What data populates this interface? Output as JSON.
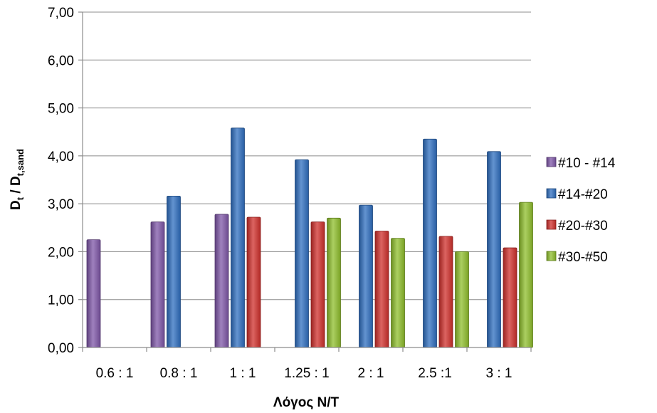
{
  "chart_data": {
    "type": "bar",
    "xlabel": "Λόγος N/T",
    "ylabel": {
      "main": "D",
      "sub1": "t",
      "sep": " / D",
      "sub2": "t,sand"
    },
    "ylim": [
      0,
      7
    ],
    "yticks": [
      "0,00",
      "1,00",
      "2,00",
      "3,00",
      "4,00",
      "5,00",
      "6,00",
      "7,00"
    ],
    "grid": true,
    "legend_position": "right",
    "categories": [
      "0.6 : 1",
      "0.8 : 1",
      "1 : 1",
      "1.25 : 1",
      "2 : 1",
      "2.5 :1",
      "3 : 1"
    ],
    "series": [
      {
        "name": "#10 - #14",
        "color": "#7f57a8",
        "values": [
          2.25,
          2.62,
          2.78,
          null,
          null,
          null,
          null
        ]
      },
      {
        "name": "#14-#20",
        "color": "#2f6fc0",
        "values": [
          null,
          3.16,
          4.58,
          3.92,
          2.97,
          4.35,
          4.09
        ]
      },
      {
        "name": "#20-#30",
        "color": "#d0302c",
        "values": [
          null,
          null,
          2.72,
          2.62,
          2.43,
          2.32,
          2.08
        ]
      },
      {
        "name": "#30-#50",
        "color": "#8fbf2c",
        "values": [
          null,
          null,
          null,
          2.7,
          2.28,
          2.0,
          3.03
        ]
      }
    ]
  }
}
